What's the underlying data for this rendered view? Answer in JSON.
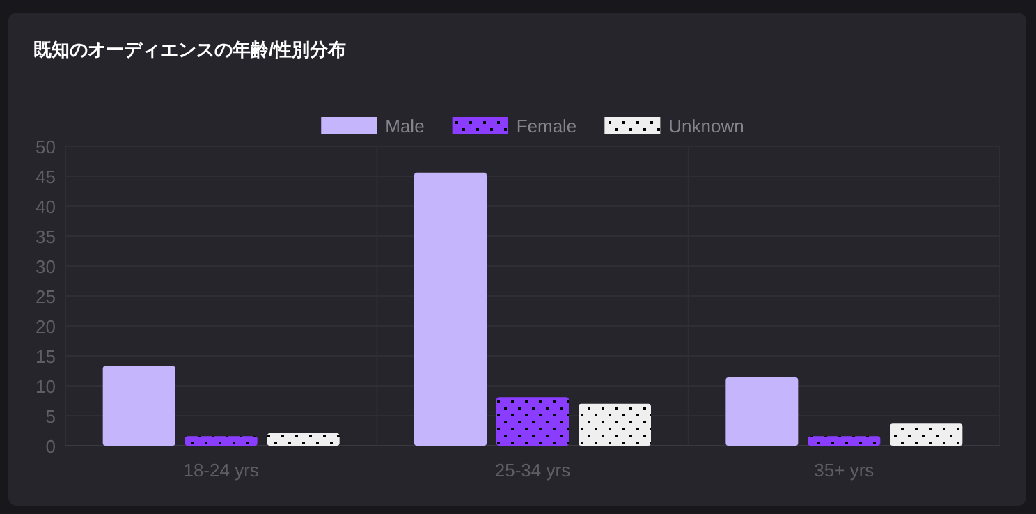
{
  "chart_data": {
    "type": "bar",
    "title": "既知のオーディエンスの年齢/性別分布",
    "categories": [
      "18-24 yrs",
      "25-34 yrs",
      "35+ yrs"
    ],
    "series": [
      {
        "name": "Male",
        "color": "#c4b5fd",
        "values": [
          13.3,
          45.6,
          11.4
        ]
      },
      {
        "name": "Female",
        "color": "#8b3dff",
        "values": [
          1.6,
          8.1,
          1.6
        ]
      },
      {
        "name": "Unknown",
        "color": "#efefef",
        "values": [
          2.1,
          7.0,
          3.7
        ]
      }
    ],
    "ylim": [
      0,
      50
    ],
    "yticks": [
      0,
      5,
      10,
      15,
      20,
      25,
      30,
      35,
      40,
      45,
      50
    ],
    "grid": true,
    "legend": "top"
  }
}
